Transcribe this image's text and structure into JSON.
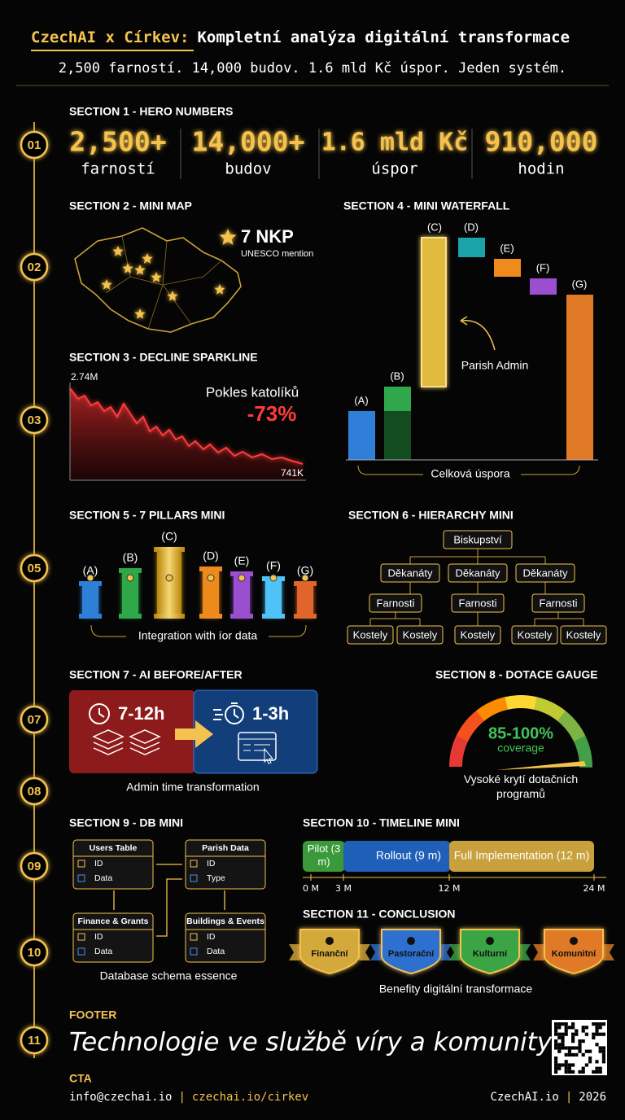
{
  "header": {
    "brand": "CzechAI x Církev:",
    "title": "Kompletní analýza digitální transformace",
    "subtitle": "2,500 farností. 14,000 budov. 1.6 mld Kč úspor. Jeden systém."
  },
  "timeline_steps": [
    "01",
    "02",
    "03",
    "05",
    "07",
    "08",
    "09",
    "10",
    "11"
  ],
  "hero": {
    "heading": "SECTION 1 - HERO NUMBERS",
    "stats": [
      {
        "value": "2,500+",
        "label": "farností"
      },
      {
        "value": "14,000+",
        "label": "budov"
      },
      {
        "value": "1.6 mld Kč",
        "label": "úspor"
      },
      {
        "value": "910,000",
        "label": "hodin"
      }
    ]
  },
  "map": {
    "heading": "SECTION 2 - MINI MAP",
    "badge": "7 NKP",
    "note": "UNESCO mention"
  },
  "sparkline": {
    "heading": "SECTION 3 - DECLINE SPARKLINE",
    "start": "2.74M",
    "end": "741K",
    "label": "Pokles katolíků",
    "change": "-73%"
  },
  "waterfall": {
    "heading": "SECTION 4 - MINI WATERFALL",
    "bars": [
      "(A)",
      "(B)",
      "(C)",
      "(D)",
      "(E)",
      "(F)",
      "(G)"
    ],
    "annotation": "Parish Admin",
    "total": "Celková úspora"
  },
  "pillars": {
    "heading": "SECTION 5 - 7 PILLARS MINI",
    "labels": [
      "(A)",
      "(B)",
      "(C)",
      "(D)",
      "(E)",
      "(F)",
      "(G)"
    ],
    "caption": "Integration with íor data"
  },
  "hierarchy": {
    "heading": "SECTION 6 - HIERARCHY MINI",
    "root": "Biskupství",
    "deaneries": [
      "Děkanáty",
      "Děkanáty",
      "Děkanáty"
    ],
    "parishes": [
      "Farnosti",
      "Farnosti",
      "Farnosti"
    ],
    "churches": [
      "Kostely",
      "Kostely",
      "Kostely",
      "Kostely",
      "Kostely"
    ]
  },
  "ai": {
    "heading": "SECTION 7 - AI BEFORE/AFTER",
    "before": "7-12h",
    "after": "1-3h",
    "caption": "Admin time transformation"
  },
  "gauge": {
    "heading": "SECTION 8 - DOTACE GAUGE",
    "value": "85-100%",
    "unit": "coverage",
    "caption": "Vysoké krytí dotačních programů"
  },
  "db": {
    "heading": "SECTION 9 - DB MINI",
    "tables": [
      {
        "name": "Users Table",
        "fields": [
          "ID",
          "Data"
        ]
      },
      {
        "name": "Parish Data",
        "fields": [
          "ID",
          "Type"
        ]
      },
      {
        "name": "Finance & Grants",
        "fields": [
          "ID",
          "Data"
        ]
      },
      {
        "name": "Buildings & Events",
        "fields": [
          "ID",
          "Data"
        ]
      }
    ],
    "caption": "Database schema essence"
  },
  "timeline": {
    "heading": "SECTION 10 - TIMELINE MINI",
    "phases": [
      "Pilot (3 m)",
      "Rollout (9 m)",
      "Full Implementation (12 m)"
    ],
    "ticks": [
      "0 M",
      "3 M",
      "12 M",
      "24 M"
    ]
  },
  "conclusion": {
    "heading": "SECTION 11 - CONCLUSION",
    "badges": [
      "Finanční",
      "Pastorační",
      "Kulturní",
      "Komunitní"
    ],
    "caption": "Benefity digitální transformace"
  },
  "footer": {
    "heading": "FOOTER",
    "tagline": "Technologie ve službě víry a komunity",
    "cta_heading": "CTA",
    "email": "info@czechai.io",
    "separator": "|",
    "url": "czechai.io/cirkev",
    "brand": "CzechAI.io",
    "year": "2026"
  }
}
